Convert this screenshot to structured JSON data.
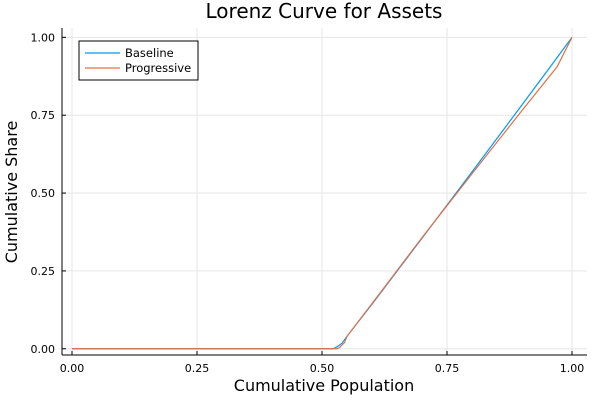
{
  "chart_data": {
    "type": "line",
    "title": "Lorenz Curve for Assets",
    "xlabel": "Cumulative Population",
    "ylabel": "Cumulative Share",
    "xlim": [
      -0.02,
      1.03
    ],
    "ylim": [
      -0.02,
      1.03
    ],
    "xticks": [
      0.0,
      0.25,
      0.5,
      0.75,
      1.0
    ],
    "yticks": [
      0.0,
      0.25,
      0.5,
      0.75,
      1.0
    ],
    "xtick_labels": [
      "0.00",
      "0.25",
      "0.50",
      "0.75",
      "1.00"
    ],
    "ytick_labels": [
      "0.00",
      "0.25",
      "0.50",
      "0.75",
      "1.00"
    ],
    "grid": true,
    "legend_position": "top-left",
    "series": [
      {
        "name": "Baseline",
        "color": "#009AFA",
        "x": [
          0.0,
          0.5,
          0.52,
          0.525,
          0.53,
          0.54,
          0.55,
          0.6,
          0.7,
          0.8,
          0.9,
          0.95,
          1.0
        ],
        "y": [
          0.0,
          0.0,
          0.0,
          0.002,
          0.006,
          0.018,
          0.04,
          0.143,
          0.355,
          0.568,
          0.783,
          0.891,
          1.0
        ]
      },
      {
        "name": "Progressive",
        "color": "#E26F46",
        "x": [
          0.0,
          0.5,
          0.52,
          0.53,
          0.535,
          0.545,
          0.55,
          0.6,
          0.7,
          0.8,
          0.9,
          0.95,
          0.97,
          1.0
        ],
        "y": [
          0.0,
          0.0,
          0.0,
          0.0,
          0.004,
          0.02,
          0.04,
          0.145,
          0.357,
          0.562,
          0.765,
          0.865,
          0.905,
          1.0
        ]
      }
    ]
  }
}
